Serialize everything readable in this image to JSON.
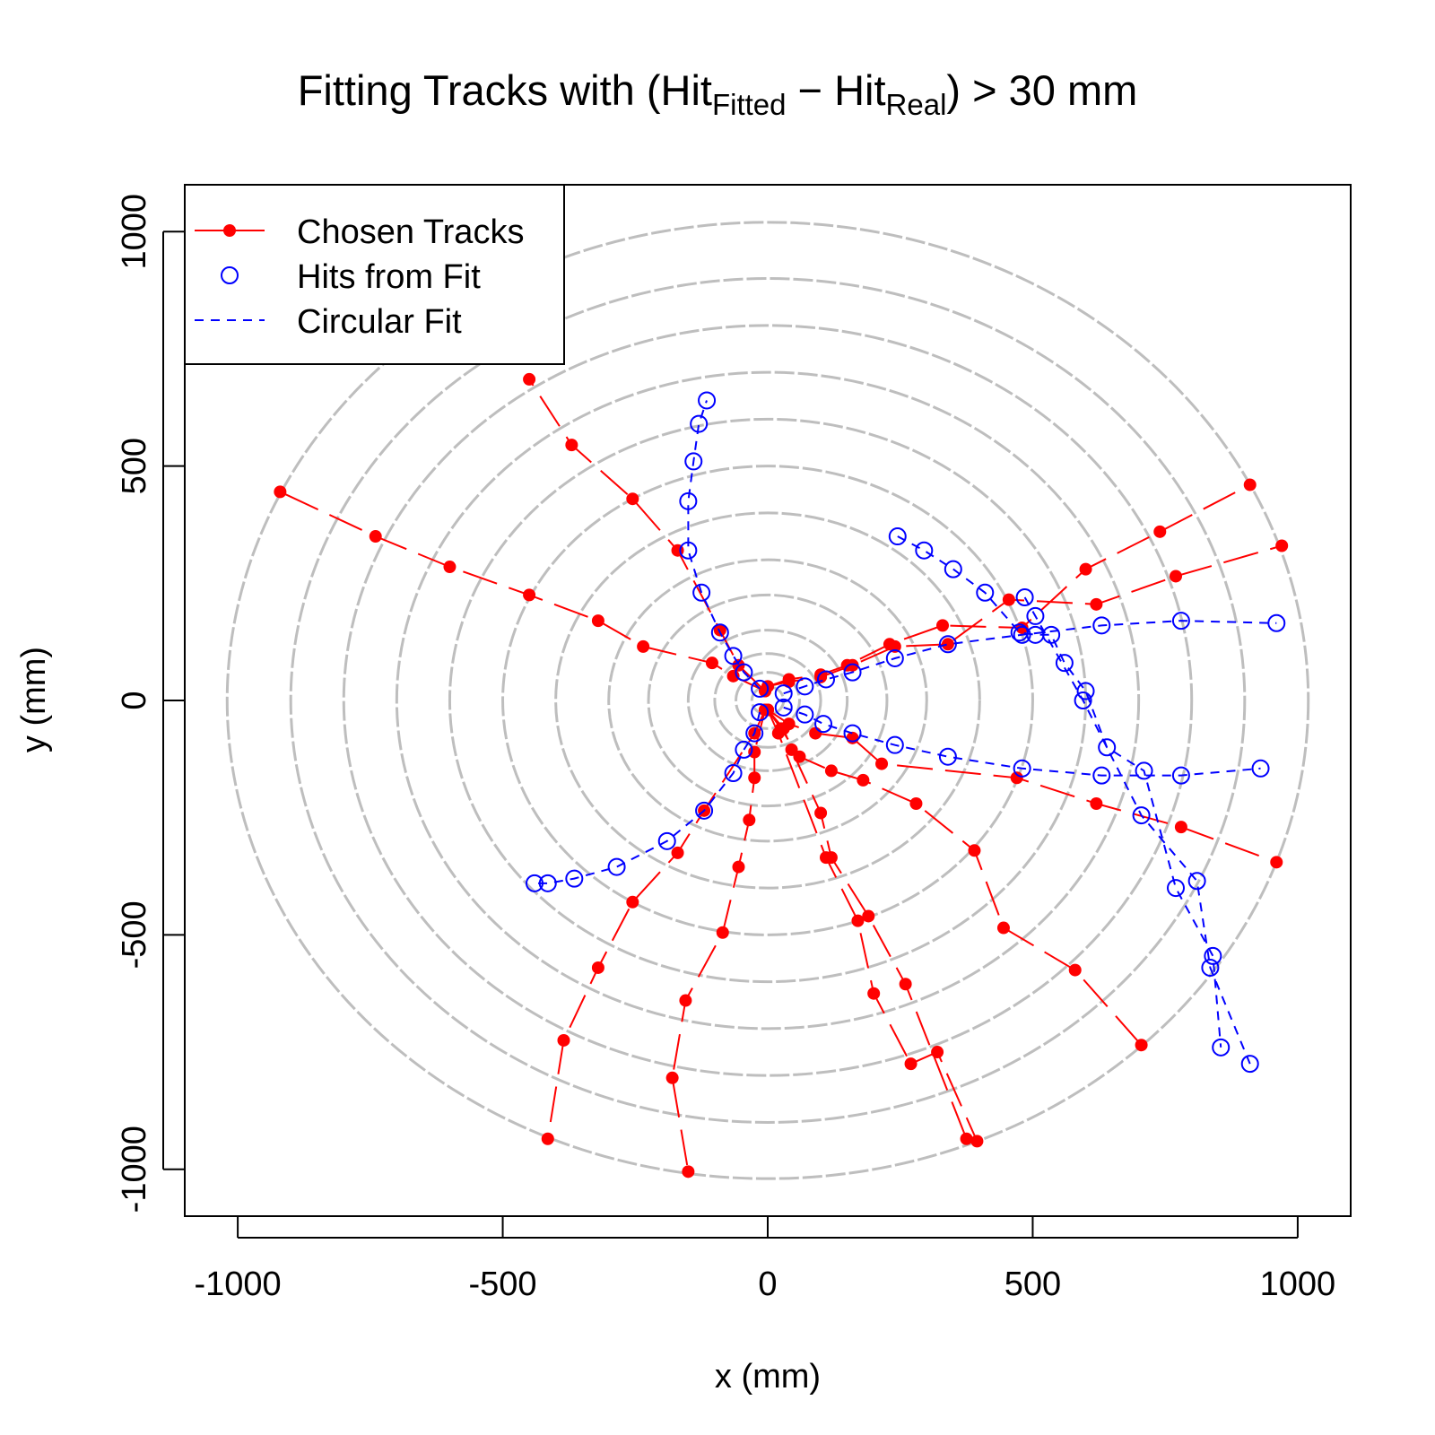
{
  "chart_data": {
    "type": "scatter",
    "title": {
      "main": "Fitting Tracks with (Hit",
      "sub1": "Fitted",
      "minus": " − Hit",
      "sub2": "Real",
      "tail": ") > 30 mm"
    },
    "xlabel": "x (mm)",
    "ylabel": "y (mm)",
    "xlim": [
      -1100,
      1100
    ],
    "ylim": [
      -1100,
      1100
    ],
    "xticks": [
      -1000,
      -500,
      0,
      500,
      1000
    ],
    "yticks": [
      -1000,
      -500,
      0,
      500,
      1000
    ],
    "xtick_labels": [
      "-1000",
      "-500",
      "0",
      "500",
      "1000"
    ],
    "ytick_labels": [
      "-1000",
      "-500",
      "0",
      "500",
      "1000"
    ],
    "grid": false,
    "detector_layer_radii": [
      30,
      60,
      100,
      150,
      225,
      300,
      400,
      500,
      600,
      700,
      800,
      900,
      1020
    ],
    "legend": {
      "position": "top-left",
      "entries": [
        {
          "label": "Chosen Tracks",
          "color": "#ff0000",
          "marker": "filled-circle",
          "line": "solid-long-dash"
        },
        {
          "label": "Hits from Fit",
          "color": "#0000ff",
          "marker": "open-circle",
          "line": "none"
        },
        {
          "label": "Circular Fit",
          "color": "#0000ff",
          "marker": "none",
          "line": "dashed"
        }
      ]
    },
    "colors": {
      "tracks": "#ff0000",
      "fit": "#0000ff",
      "layers": "#bebebe"
    },
    "series": [
      {
        "name": "Chosen Tracks",
        "tracks": [
          [
            [
              -5,
              20
            ],
            [
              -65,
              52
            ],
            [
              -105,
              80
            ],
            [
              -235,
              115
            ],
            [
              -320,
              170
            ],
            [
              -450,
              225
            ],
            [
              -600,
              285
            ],
            [
              -740,
              350
            ],
            [
              -920,
              445
            ]
          ],
          [
            [
              -5,
              20
            ],
            [
              -55,
              75
            ],
            [
              -90,
              150
            ],
            [
              -170,
              320
            ],
            [
              -255,
              430
            ],
            [
              -370,
              545
            ],
            [
              -450,
              685
            ]
          ],
          [
            [
              0,
              30
            ],
            [
              40,
              45
            ],
            [
              100,
              55
            ],
            [
              150,
              75
            ],
            [
              230,
              120
            ],
            [
              330,
              160
            ],
            [
              480,
              155
            ],
            [
              600,
              280
            ],
            [
              740,
              360
            ],
            [
              910,
              460
            ]
          ],
          [
            [
              0,
              30
            ],
            [
              40,
              40
            ],
            [
              100,
              50
            ],
            [
              160,
              75
            ],
            [
              240,
              115
            ],
            [
              340,
              120
            ],
            [
              455,
              215
            ],
            [
              620,
              205
            ],
            [
              770,
              265
            ],
            [
              970,
              330
            ]
          ],
          [
            [
              0,
              -20
            ],
            [
              40,
              -50
            ],
            [
              90,
              -70
            ],
            [
              160,
              -80
            ],
            [
              215,
              -135
            ],
            [
              470,
              -165
            ],
            [
              620,
              -220
            ],
            [
              780,
              -270
            ],
            [
              960,
              -345
            ]
          ],
          [
            [
              0,
              -20
            ],
            [
              25,
              -60
            ],
            [
              60,
              -120
            ],
            [
              120,
              -150
            ],
            [
              180,
              -170
            ],
            [
              280,
              -220
            ],
            [
              390,
              -320
            ],
            [
              445,
              -485
            ],
            [
              580,
              -575
            ],
            [
              705,
              -735
            ]
          ],
          [
            [
              0,
              -20
            ],
            [
              30,
              -60
            ],
            [
              45,
              -105
            ],
            [
              100,
              -240
            ],
            [
              120,
              -335
            ],
            [
              190,
              -460
            ],
            [
              260,
              -605
            ],
            [
              375,
              -935
            ]
          ],
          [
            [
              0,
              -20
            ],
            [
              20,
              -70
            ],
            [
              110,
              -335
            ],
            [
              170,
              -470
            ],
            [
              200,
              -625
            ],
            [
              270,
              -775
            ],
            [
              320,
              -750
            ],
            [
              395,
              -940
            ]
          ],
          [
            [
              -5,
              -20
            ],
            [
              -25,
              -110
            ],
            [
              -25,
              -165
            ],
            [
              -35,
              -255
            ],
            [
              -55,
              -355
            ],
            [
              -85,
              -495
            ],
            [
              -155,
              -640
            ],
            [
              -180,
              -805
            ],
            [
              -150,
              -1005
            ]
          ],
          [
            [
              -5,
              -20
            ],
            [
              -25,
              -70
            ],
            [
              -120,
              -235
            ],
            [
              -170,
              -325
            ],
            [
              -255,
              -430
            ],
            [
              -320,
              -570
            ],
            [
              -385,
              -725
            ],
            [
              -415,
              -935
            ]
          ]
        ]
      },
      {
        "name": "Hits from Fit",
        "tracks": [
          [
            [
              -15,
              25
            ],
            [
              -45,
              60
            ],
            [
              -65,
              95
            ],
            [
              -90,
              145
            ],
            [
              -125,
              230
            ],
            [
              -150,
              320
            ],
            [
              -150,
              425
            ],
            [
              -140,
              510
            ],
            [
              -130,
              590
            ],
            [
              -115,
              640
            ]
          ],
          [
            [
              30,
              15
            ],
            [
              70,
              30
            ],
            [
              110,
              45
            ],
            [
              160,
              60
            ],
            [
              240,
              90
            ],
            [
              340,
              120
            ],
            [
              480,
              140
            ],
            [
              630,
              160
            ],
            [
              780,
              170
            ],
            [
              960,
              165
            ]
          ],
          [
            [
              30,
              -15
            ],
            [
              70,
              -30
            ],
            [
              105,
              -50
            ],
            [
              160,
              -70
            ],
            [
              240,
              -95
            ],
            [
              340,
              -120
            ],
            [
              480,
              -145
            ],
            [
              630,
              -160
            ],
            [
              780,
              -160
            ],
            [
              930,
              -145
            ]
          ],
          [
            [
              -15,
              -25
            ],
            [
              -25,
              -70
            ],
            [
              -45,
              -105
            ],
            [
              -65,
              -155
            ],
            [
              -120,
              -235
            ],
            [
              -190,
              -300
            ],
            [
              -285,
              -355
            ],
            [
              -365,
              -380
            ],
            [
              -415,
              -390
            ],
            [
              -440,
              -390
            ]
          ],
          [
            [
              245,
              350
            ],
            [
              295,
              320
            ],
            [
              350,
              280
            ],
            [
              410,
              230
            ],
            [
              475,
              145
            ],
            [
              505,
              140
            ],
            [
              535,
              140
            ],
            [
              560,
              80
            ],
            [
              600,
              20
            ],
            [
              640,
              -100
            ],
            [
              710,
              -150
            ],
            [
              770,
              -400
            ],
            [
              840,
              -545
            ],
            [
              855,
              -740
            ]
          ],
          [
            [
              485,
              220
            ],
            [
              505,
              180
            ],
            [
              595,
              0
            ],
            [
              705,
              -245
            ],
            [
              810,
              -385
            ],
            [
              835,
              -570
            ],
            [
              910,
              -775
            ]
          ]
        ]
      }
    ]
  }
}
